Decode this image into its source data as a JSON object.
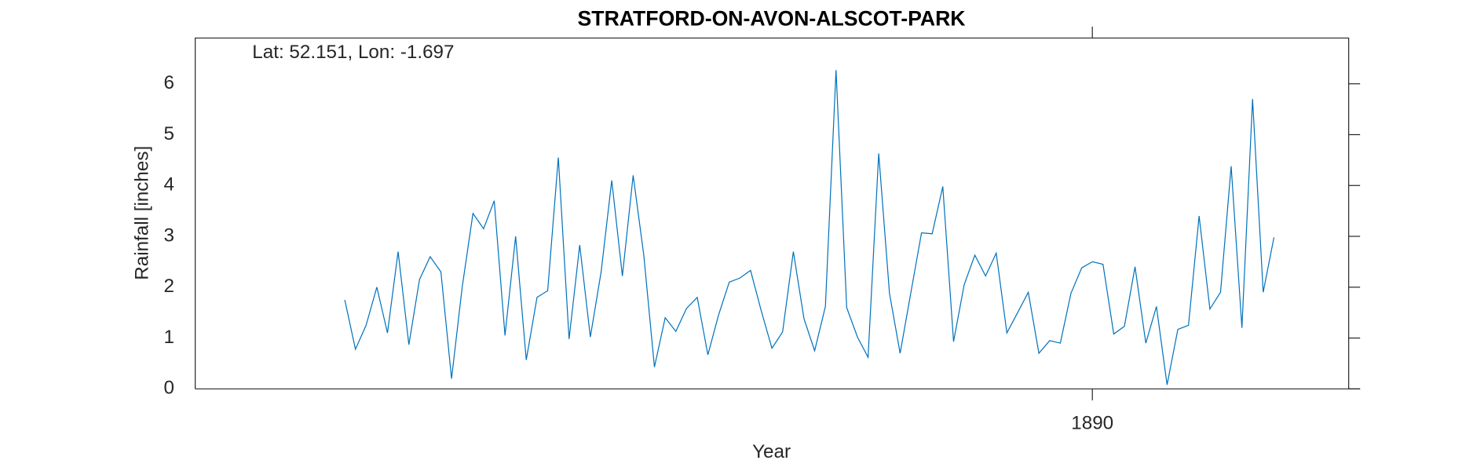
{
  "chart_data": {
    "type": "line",
    "title": "STRATFORD-ON-AVON-ALSCOT-PARK",
    "annotation": "Lat: 52.151, Lon: -1.697",
    "xlabel": "Year",
    "ylabel": "Rainfall [inches]",
    "color": "#0072BD",
    "xlim": [
      1883,
      1892
    ],
    "xticks": [
      1890
    ],
    "ylim": [
      0,
      6.9
    ],
    "yticks": [
      0,
      1,
      2,
      3,
      4,
      5,
      6
    ],
    "x": [
      1884.167,
      1884.25,
      1884.333,
      1884.417,
      1884.5,
      1884.583,
      1884.667,
      1884.75,
      1884.833,
      1884.917,
      1885,
      1885.083,
      1885.167,
      1885.25,
      1885.333,
      1885.417,
      1885.5,
      1885.583,
      1885.667,
      1885.75,
      1885.833,
      1885.917,
      1886,
      1886.083,
      1886.167,
      1886.25,
      1886.333,
      1886.417,
      1886.5,
      1886.583,
      1886.667,
      1886.75,
      1886.833,
      1886.917,
      1887,
      1887.083,
      1887.167,
      1887.25,
      1887.333,
      1887.417,
      1887.5,
      1887.583,
      1887.667,
      1887.75,
      1887.833,
      1887.917,
      1888,
      1888.083,
      1888.167,
      1888.25,
      1888.333,
      1888.417,
      1888.5,
      1888.583,
      1888.667,
      1888.75,
      1888.833,
      1888.917,
      1889,
      1889.083,
      1889.167,
      1889.25,
      1889.333,
      1889.417,
      1889.5,
      1889.583,
      1889.667,
      1889.75,
      1889.833,
      1889.917,
      1890,
      1890.083,
      1890.167,
      1890.25,
      1890.333,
      1890.417,
      1890.5,
      1890.583,
      1890.667,
      1890.75,
      1890.833,
      1890.917,
      1891,
      1891.083,
      1891.167,
      1891.25,
      1891.333,
      1891.417
    ],
    "values": [
      1.75,
      0.78,
      1.25,
      2.0,
      1.1,
      2.7,
      0.87,
      2.15,
      2.6,
      2.3,
      0.2,
      2.0,
      3.45,
      3.15,
      3.7,
      1.05,
      3.0,
      0.57,
      1.8,
      1.93,
      4.55,
      0.98,
      2.83,
      1.02,
      2.3,
      4.1,
      2.22,
      4.2,
      2.63,
      0.43,
      1.4,
      1.13,
      1.58,
      1.8,
      0.67,
      1.45,
      2.1,
      2.18,
      2.33,
      1.53,
      0.8,
      1.12,
      2.7,
      1.38,
      0.75,
      1.62,
      6.27,
      1.6,
      1.02,
      0.62,
      4.63,
      1.88,
      0.7,
      1.88,
      3.07,
      3.05,
      3.98,
      0.93,
      2.05,
      2.63,
      2.22,
      2.67,
      1.1,
      1.5,
      1.9,
      0.7,
      0.95,
      0.9,
      1.88,
      2.38,
      2.5,
      2.45,
      1.08,
      1.23,
      2.4,
      0.9,
      1.62,
      0.08,
      1.17,
      1.25,
      3.4,
      1.57,
      1.9,
      4.38,
      1.2,
      5.7,
      1.9,
      2.98
    ]
  }
}
